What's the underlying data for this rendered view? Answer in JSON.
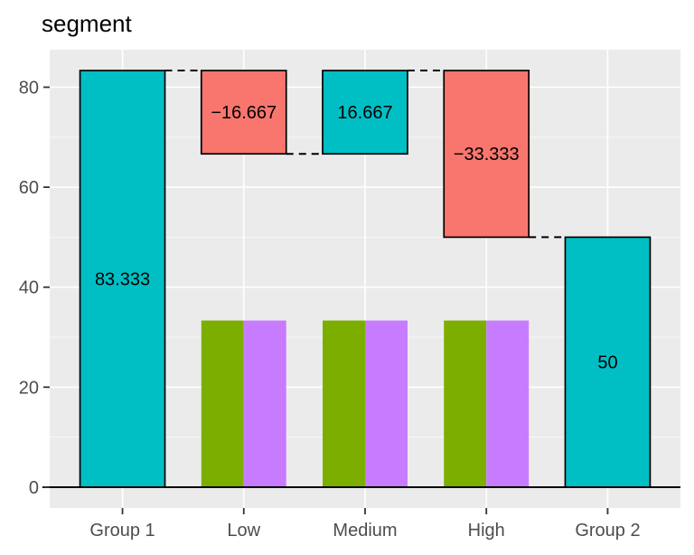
{
  "title": "segment",
  "colors": {
    "teal": "#00BFC4",
    "red": "#F8766D",
    "green": "#7CAE00",
    "purple": "#C77CFF",
    "panel_bg": "#EBEBEB",
    "grid_major": "#FFFFFF",
    "grid_minor": "#F5F5F5",
    "axis_text": "#4D4D4D",
    "tick_mark": "#333333",
    "bar_stroke": "#000000",
    "zero_line": "#000000",
    "value_label": "#000000",
    "title_color": "#000000"
  },
  "axes": {
    "y_tick_labels": [
      "0",
      "20",
      "40",
      "60",
      "80"
    ],
    "x_tick_labels": [
      "Group 1",
      "Low",
      "Medium",
      "High",
      "Group 2"
    ]
  },
  "chart_data": {
    "type": "bar",
    "subtype": "waterfall",
    "title": "segment",
    "xlabel": "",
    "ylabel": "",
    "legend_position": "none",
    "grid": "horizontal major+minor white, vertical major at category centers, gray panel",
    "categories": [
      "Group 1",
      "Low",
      "Medium",
      "High",
      "Group 2"
    ],
    "ylim": [
      -4.1667,
      87.5
    ],
    "y_major_ticks": [
      0,
      20,
      40,
      60,
      80
    ],
    "y_minor_ticks": [
      10,
      30,
      50,
      70
    ],
    "bar_width": 0.7,
    "bars": [
      {
        "category": "Group 1",
        "from": 0,
        "to": 83.333,
        "value": 83.333,
        "label": "83.333",
        "color_key": "teal",
        "outlined": true
      },
      {
        "category": "Low",
        "from": 83.333,
        "to": 66.667,
        "value": -16.667,
        "label": "−16.667",
        "color_key": "red",
        "outlined": true
      },
      {
        "category": "Medium",
        "from": 66.667,
        "to": 83.333,
        "value": 16.667,
        "label": "16.667",
        "color_key": "teal",
        "outlined": true
      },
      {
        "category": "High",
        "from": 83.333,
        "to": 50,
        "value": -33.333,
        "label": "−33.333",
        "color_key": "red",
        "outlined": true
      },
      {
        "category": "Group 2",
        "from": 0,
        "to": 50,
        "value": 50,
        "label": "50",
        "color_key": "teal",
        "outlined": true
      }
    ],
    "background_series": [
      {
        "name": "green",
        "color_key": "green",
        "categories": [
          "Low",
          "Medium",
          "High"
        ],
        "values": [
          33.333,
          33.333,
          33.333
        ]
      },
      {
        "name": "purple",
        "color_key": "purple",
        "categories": [
          "Low",
          "Medium",
          "High"
        ],
        "values": [
          33.333,
          33.333,
          33.333
        ]
      }
    ],
    "connectors": [
      {
        "from_cat": "Group 1",
        "to_cat": "Low",
        "at": 83.333
      },
      {
        "from_cat": "Low",
        "to_cat": "Medium",
        "at": 66.667
      },
      {
        "from_cat": "Medium",
        "to_cat": "High",
        "at": 83.333
      },
      {
        "from_cat": "High",
        "to_cat": "Group 2",
        "at": 50
      }
    ]
  }
}
